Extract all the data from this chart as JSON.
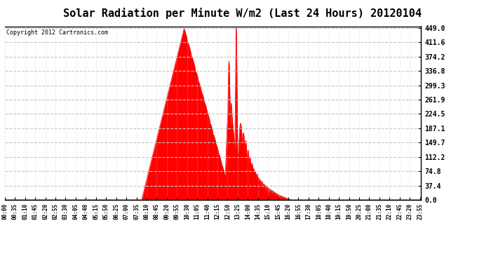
{
  "title": "Solar Radiation per Minute W/m2 (Last 24 Hours) 20120104",
  "copyright_text": "Copyright 2012 Cartronics.com",
  "bg_color": "#ffffff",
  "plot_bg_color": "#ffffff",
  "fill_color": "#ff0000",
  "line_color": "#ff0000",
  "dashed_line_color": "#ff0000",
  "grid_color": "#c8c8c8",
  "title_fontsize": 11,
  "ytick_values": [
    0.0,
    37.4,
    74.8,
    112.2,
    149.7,
    187.1,
    224.5,
    261.9,
    299.3,
    336.8,
    374.2,
    411.6,
    449.0
  ],
  "ymax": 449.0,
  "ymin": 0.0,
  "total_minutes": 1440,
  "tick_interval": 35
}
